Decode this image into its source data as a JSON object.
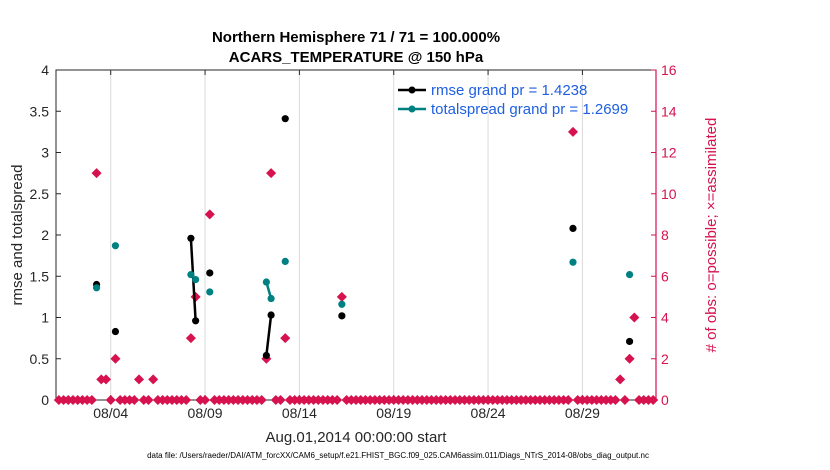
{
  "chart_data": {
    "type": "line",
    "title": "Northern Hemisphere 71 / 71 = 100.000%",
    "subtitle": "ACARS_TEMPERATURE @ 150 hPa",
    "xlabel": "Aug.01,2014 00:00:00 start",
    "ylabel": "rmse and totalspread",
    "ylabel_right": "# of obs: o=possible; ×=assimilated",
    "footnote": "data file: /Users/raeder/DAI/ATM_forcXX/CAM6_setup/f.e21.FHIST_BGC.f09_025.CAM6assim.011/Diags_NTrS_2014-08/obs_diag_output.nc",
    "xlim": [
      0.6,
      32.4
    ],
    "ylim": [
      0,
      4
    ],
    "ylim_right": [
      0,
      16
    ],
    "x_ticks": [
      3.5,
      8.5,
      13.5,
      18.5,
      23.5,
      28.5
    ],
    "x_tick_labels": [
      "08/04",
      "08/09",
      "08/14",
      "08/19",
      "08/24",
      "08/29"
    ],
    "y_ticks": [
      0,
      0.5,
      1,
      1.5,
      2,
      2.5,
      3,
      3.5,
      4
    ],
    "y_tick_labels": [
      "0",
      "0.5",
      "1",
      "1.5",
      "2",
      "2.5",
      "3",
      "3.5",
      "4"
    ],
    "y_ticks_right": [
      0,
      2,
      4,
      6,
      8,
      10,
      12,
      14,
      16
    ],
    "y_tick_labels_right": [
      "0",
      "2",
      "4",
      "6",
      "8",
      "10",
      "12",
      "14",
      "16"
    ],
    "legend_position": "top-right",
    "series": [
      {
        "name": "rmse grand pr = 1.4238",
        "color": "#000000",
        "points": [
          [
            2.75,
            1.4
          ],
          [
            3.75,
            0.83
          ],
          [
            7.75,
            1.96
          ],
          [
            8.0,
            0.96
          ],
          [
            8.75,
            1.54
          ],
          [
            11.75,
            0.54
          ],
          [
            12.0,
            1.03
          ],
          [
            12.75,
            3.41
          ],
          [
            15.75,
            1.02
          ],
          [
            28.0,
            2.08
          ],
          [
            31.0,
            0.71
          ]
        ],
        "segments": [
          [
            [
              7.75,
              1.96
            ],
            [
              8.0,
              0.96
            ]
          ],
          [
            [
              11.75,
              0.54
            ],
            [
              12.0,
              1.03
            ]
          ]
        ]
      },
      {
        "name": "totalspread grand pr = 1.2699",
        "color": "#008080",
        "points": [
          [
            2.75,
            1.36
          ],
          [
            3.75,
            1.87
          ],
          [
            7.75,
            1.52
          ],
          [
            8.0,
            1.46
          ],
          [
            8.75,
            1.31
          ],
          [
            11.75,
            1.43
          ],
          [
            12.0,
            1.23
          ],
          [
            12.75,
            1.68
          ],
          [
            15.75,
            1.16
          ],
          [
            28.0,
            1.67
          ],
          [
            31.0,
            1.52
          ]
        ],
        "segments": [
          [
            [
              7.75,
              1.52
            ],
            [
              8.0,
              1.46
            ]
          ],
          [
            [
              11.75,
              1.43
            ],
            [
              12.0,
              1.23
            ]
          ]
        ]
      }
    ],
    "obs_count_series": {
      "name": "# of obs",
      "color": "#d6124f",
      "axis": "right",
      "points": [
        [
          2.75,
          11
        ],
        [
          3.0,
          1
        ],
        [
          3.25,
          1
        ],
        [
          3.75,
          2
        ],
        [
          5.0,
          1
        ],
        [
          5.75,
          1
        ],
        [
          7.75,
          3
        ],
        [
          8.0,
          5
        ],
        [
          8.75,
          9
        ],
        [
          11.75,
          2
        ],
        [
          12.0,
          11
        ],
        [
          12.75,
          3
        ],
        [
          15.75,
          5
        ],
        [
          28.0,
          13
        ],
        [
          30.5,
          1
        ],
        [
          31.0,
          2
        ],
        [
          31.25,
          4
        ]
      ],
      "baseline_count": 0,
      "baseline_x_start": 0.75,
      "baseline_x_end": 32.25,
      "baseline_step": 0.25
    }
  }
}
